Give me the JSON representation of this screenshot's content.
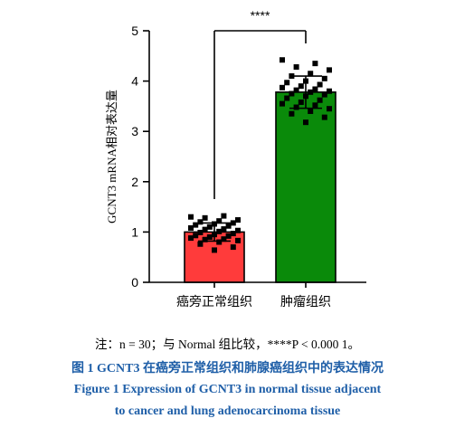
{
  "chart_data": {
    "type": "bar",
    "categories": [
      "癌旁正常组织",
      "肿瘤组织"
    ],
    "values": [
      1.0,
      3.78
    ],
    "error": [
      0.18,
      0.32
    ],
    "colors": [
      "#ff3b3b",
      "#0a8a0a"
    ],
    "points": [
      [
        1.3,
        1.32,
        1.28,
        1.24,
        1.22,
        1.2,
        1.18,
        1.16,
        1.14,
        1.12,
        1.1,
        1.08,
        1.06,
        1.05,
        1.03,
        1.01,
        0.99,
        0.97,
        0.95,
        0.93,
        0.92,
        0.9,
        0.88,
        0.86,
        0.85,
        0.83,
        0.8,
        0.76,
        0.7,
        0.64
      ],
      [
        4.42,
        4.35,
        4.28,
        4.22,
        4.15,
        4.1,
        4.05,
        4.0,
        3.97,
        3.93,
        3.9,
        3.87,
        3.84,
        3.82,
        3.8,
        3.78,
        3.75,
        3.73,
        3.7,
        3.66,
        3.62,
        3.58,
        3.55,
        3.52,
        3.48,
        3.45,
        3.4,
        3.35,
        3.28,
        3.18
      ]
    ],
    "ylabel": "GCNT3 mRNA相对表达量",
    "ylim": [
      0,
      5
    ],
    "yticks": [
      0,
      1,
      2,
      3,
      4,
      5
    ],
    "significance": "****"
  },
  "note": "注：n = 30；与 Normal 组比较，****P < 0.000 1。",
  "caption_cn": "图 1    GCNT3 在癌旁正常组织和肺腺癌组织中的表达情况",
  "caption_en_line1": "Figure 1    Expression of GCNT3 in normal tissue adjacent",
  "caption_en_line2": "to cancer and lung adenocarcinoma tissue"
}
